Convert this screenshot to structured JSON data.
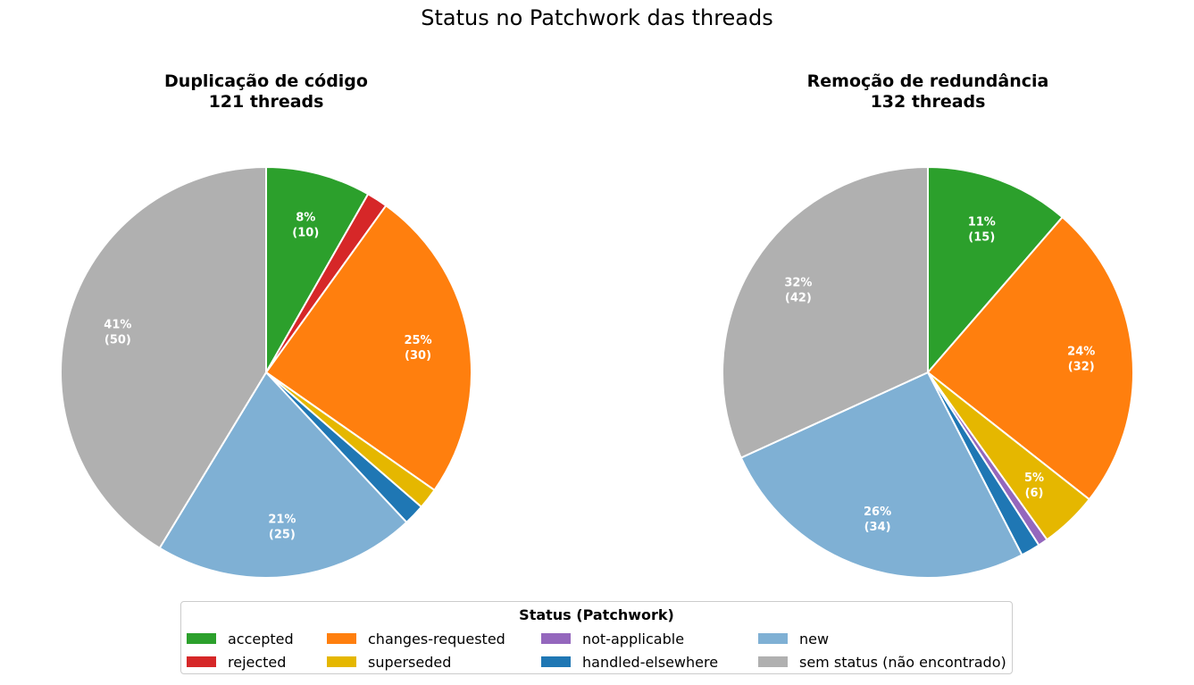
{
  "figure": {
    "suptitle": "Status no Patchwork das threads"
  },
  "colors": {
    "accepted": "#2ca02c",
    "rejected": "#d62728",
    "changes-requested": "#ff7f0e",
    "superseded": "#e5b700",
    "not-applicable": "#9467bd",
    "handled-elsewhere": "#1f77b4",
    "new": "#7fb0d4",
    "sem status (não encontrado)": "#b0b0b0"
  },
  "chart_data": [
    {
      "type": "pie",
      "title_line1": "Duplicação de código",
      "title_line2": "121 threads",
      "start": "top",
      "direction": "clockwise",
      "slices": [
        {
          "label": "accepted",
          "value": 10,
          "text_pct": "8%",
          "text_count": "(10)"
        },
        {
          "label": "rejected",
          "value": 2,
          "text_pct": "",
          "text_count": ""
        },
        {
          "label": "changes-requested",
          "value": 30,
          "text_pct": "25%",
          "text_count": "(30)"
        },
        {
          "label": "superseded",
          "value": 2,
          "text_pct": "",
          "text_count": ""
        },
        {
          "label": "handled-elsewhere",
          "value": 2,
          "text_pct": "",
          "text_count": ""
        },
        {
          "label": "new",
          "value": 25,
          "text_pct": "21%",
          "text_count": "(25)"
        },
        {
          "label": "sem status (não encontrado)",
          "value": 50,
          "text_pct": "41%",
          "text_count": "(50)"
        }
      ]
    },
    {
      "type": "pie",
      "title_line1": "Remoção de redundância",
      "title_line2": "132 threads",
      "start": "top",
      "direction": "clockwise",
      "slices": [
        {
          "label": "accepted",
          "value": 15,
          "text_pct": "11%",
          "text_count": "(15)"
        },
        {
          "label": "changes-requested",
          "value": 32,
          "text_pct": "24%",
          "text_count": "(32)"
        },
        {
          "label": "superseded",
          "value": 6,
          "text_pct": "5%",
          "text_count": "(6)"
        },
        {
          "label": "not-applicable",
          "value": 1,
          "text_pct": "",
          "text_count": ""
        },
        {
          "label": "handled-elsewhere",
          "value": 2,
          "text_pct": "",
          "text_count": ""
        },
        {
          "label": "new",
          "value": 34,
          "text_pct": "26%",
          "text_count": "(34)"
        },
        {
          "label": "sem status (não encontrado)",
          "value": 42,
          "text_pct": "32%",
          "text_count": "(42)"
        }
      ]
    }
  ],
  "legend": {
    "title": "Status (Patchwork)",
    "placement": "bottom-center",
    "items": [
      "accepted",
      "rejected",
      "changes-requested",
      "superseded",
      "not-applicable",
      "handled-elsewhere",
      "new",
      "sem status (não encontrado)"
    ]
  }
}
